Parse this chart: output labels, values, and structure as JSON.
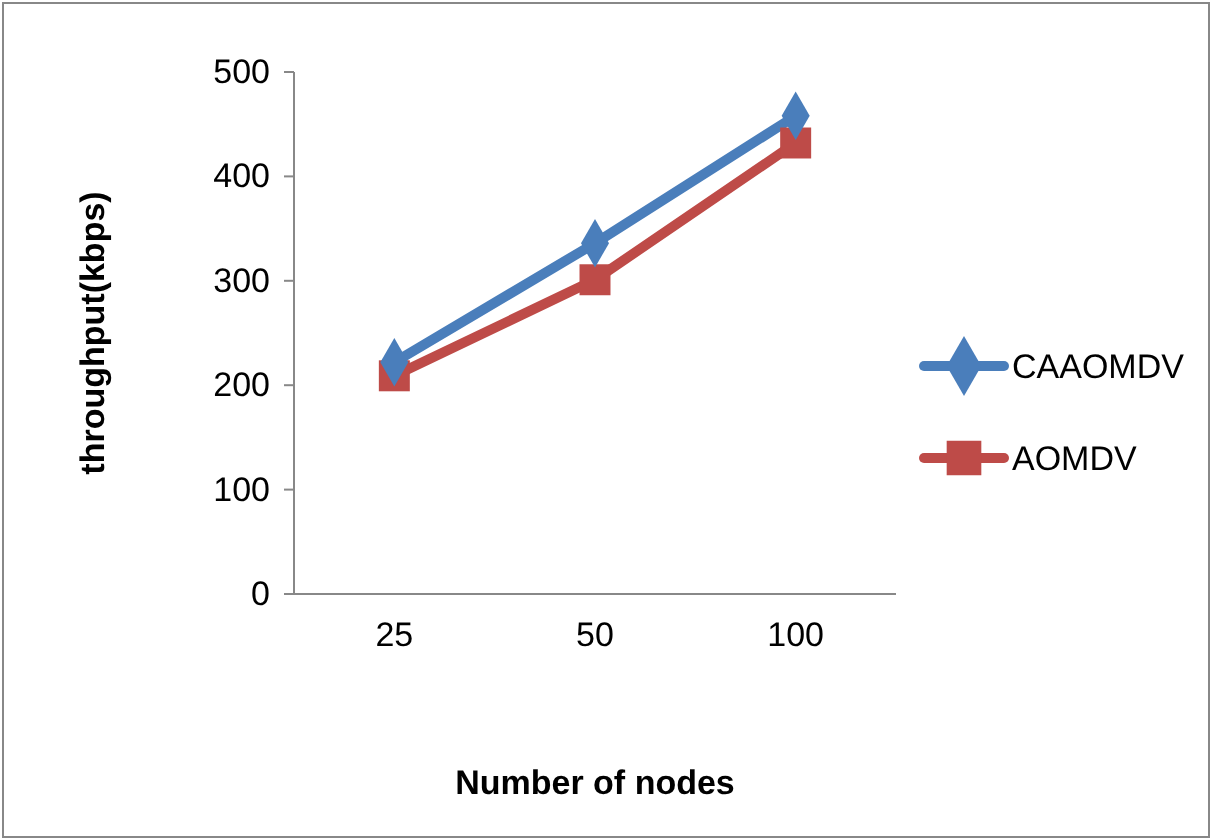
{
  "chart_data": {
    "type": "line",
    "xlabel": "Number of nodes",
    "ylabel": "throughput(kbps)",
    "categories": [
      "25",
      "50",
      "100"
    ],
    "series": [
      {
        "name": "CAAOMDV",
        "color": "#4a7ebb",
        "values": [
          222,
          336,
          458
        ],
        "marker": "diamond"
      },
      {
        "name": "AOMDV",
        "color": "#be4b48",
        "values": [
          209,
          301,
          432
        ],
        "marker": "square"
      }
    ],
    "ylim": [
      0,
      500
    ],
    "yticks": [
      0,
      100,
      200,
      300,
      400,
      500
    ],
    "grid": false,
    "legend": "right"
  }
}
